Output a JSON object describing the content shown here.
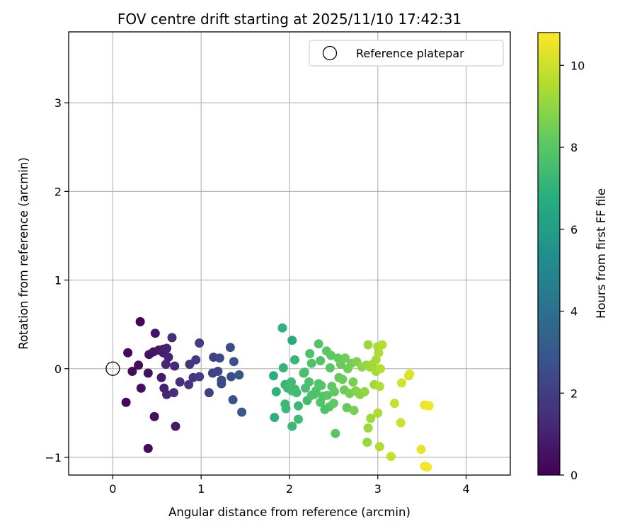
{
  "chart_data": {
    "type": "scatter",
    "title": "FOV centre drift starting at 2025/11/10 17:42:31",
    "xlabel": "Angular distance from reference (arcmin)",
    "ylabel": "Rotation from reference (arcmin)",
    "xlim": [
      -0.5,
      4.5
    ],
    "ylim": [
      -1.2,
      3.8
    ],
    "x_ticks": [
      0,
      1,
      2,
      3,
      4
    ],
    "x_tick_labels": [
      "0",
      "1",
      "2",
      "3",
      "4"
    ],
    "y_ticks": [
      -1,
      0,
      1,
      2,
      3
    ],
    "y_tick_labels": [
      "−1",
      "0",
      "1",
      "2",
      "3"
    ],
    "grid": true,
    "legend": {
      "position": "top-right",
      "entries": [
        {
          "label": "Reference platepar",
          "marker": "open-circle"
        }
      ]
    },
    "reference_point": {
      "x": 0,
      "y": 0,
      "label": "Reference platepar"
    },
    "colorbar": {
      "label": "Hours from first FF file",
      "colormap": "viridis",
      "range": [
        0,
        10.8
      ],
      "ticks": [
        0,
        2,
        4,
        6,
        8,
        10
      ],
      "tick_labels": [
        "0",
        "2",
        "4",
        "6",
        "8",
        "10"
      ]
    },
    "series": [
      {
        "name": "FOV centre drift",
        "points": [
          [
            0.31,
            0.53,
            0.1
          ],
          [
            0.17,
            0.18,
            0.2
          ],
          [
            0.15,
            -0.38,
            0.15
          ],
          [
            0.22,
            -0.03,
            0.3
          ],
          [
            0.29,
            0.04,
            0.35
          ],
          [
            0.32,
            -0.22,
            0.4
          ],
          [
            0.41,
            0.16,
            0.5
          ],
          [
            0.4,
            -0.05,
            0.45
          ],
          [
            0.48,
            0.4,
            0.55
          ],
          [
            0.46,
            0.19,
            0.6
          ],
          [
            0.52,
            0.21,
            0.7
          ],
          [
            0.47,
            -0.54,
            0.5
          ],
          [
            0.4,
            -0.9,
            0.35
          ],
          [
            0.55,
            -0.1,
            0.8
          ],
          [
            0.57,
            0.22,
            0.9
          ],
          [
            0.57,
            0.18,
            0.95
          ],
          [
            0.61,
            0.23,
            1.0
          ],
          [
            0.63,
            0.13,
            1.05
          ],
          [
            0.58,
            -0.22,
            1.1
          ],
          [
            0.61,
            -0.29,
            1.15
          ],
          [
            0.6,
            0.05,
            1.2
          ],
          [
            0.7,
            0.03,
            1.3
          ],
          [
            0.71,
            -0.65,
            0.8
          ],
          [
            0.67,
            0.35,
            1.35
          ],
          [
            0.69,
            -0.27,
            1.4
          ],
          [
            0.76,
            -0.15,
            1.5
          ],
          [
            0.86,
            -0.18,
            1.6
          ],
          [
            0.87,
            0.05,
            1.7
          ],
          [
            0.91,
            -0.1,
            1.8
          ],
          [
            0.94,
            0.1,
            1.9
          ],
          [
            0.98,
            -0.09,
            2.0
          ],
          [
            0.98,
            0.29,
            2.05
          ],
          [
            1.09,
            -0.27,
            2.1
          ],
          [
            1.13,
            -0.05,
            2.15
          ],
          [
            1.14,
            0.13,
            2.2
          ],
          [
            1.19,
            -0.03,
            2.3
          ],
          [
            1.21,
            0.12,
            2.35
          ],
          [
            1.23,
            -0.13,
            2.4
          ],
          [
            1.23,
            -0.17,
            2.45
          ],
          [
            1.33,
            0.24,
            2.5
          ],
          [
            1.34,
            -0.09,
            2.6
          ],
          [
            1.37,
            0.08,
            2.7
          ],
          [
            1.36,
            -0.35,
            2.8
          ],
          [
            1.43,
            -0.07,
            2.9
          ],
          [
            1.46,
            -0.49,
            3.0
          ],
          [
            1.92,
            0.46,
            7.0
          ],
          [
            1.82,
            -0.08,
            6.8
          ],
          [
            1.83,
            -0.55,
            6.9
          ],
          [
            1.85,
            -0.26,
            7.0
          ],
          [
            1.93,
            0.01,
            7.1
          ],
          [
            1.95,
            -0.18,
            7.2
          ],
          [
            1.95,
            -0.4,
            7.3
          ],
          [
            1.96,
            -0.45,
            7.25
          ],
          [
            1.98,
            -0.22,
            7.35
          ],
          [
            2.03,
            0.32,
            6.6
          ],
          [
            2.02,
            -0.15,
            7.4
          ],
          [
            2.03,
            -0.25,
            7.5
          ],
          [
            2.03,
            -0.65,
            7.3
          ],
          [
            2.06,
            0.1,
            7.2
          ],
          [
            2.06,
            -0.23,
            7.45
          ],
          [
            2.08,
            -0.27,
            7.5
          ],
          [
            2.1,
            -0.42,
            7.3
          ],
          [
            2.1,
            -0.57,
            7.4
          ],
          [
            2.16,
            -0.05,
            7.55
          ],
          [
            2.17,
            -0.04,
            7.6
          ],
          [
            2.18,
            -0.22,
            7.6
          ],
          [
            2.2,
            -0.36,
            7.5
          ],
          [
            2.23,
            0.17,
            7.7
          ],
          [
            2.22,
            -0.15,
            7.65
          ],
          [
            2.25,
            -0.3,
            7.7
          ],
          [
            2.25,
            0.06,
            7.75
          ],
          [
            2.28,
            -0.29,
            7.75
          ],
          [
            2.3,
            -0.25,
            7.8
          ],
          [
            2.33,
            0.28,
            7.8
          ],
          [
            2.33,
            -0.17,
            7.85
          ],
          [
            2.35,
            0.09,
            7.85
          ],
          [
            2.35,
            -0.38,
            7.9
          ],
          [
            2.36,
            -0.19,
            7.9
          ],
          [
            2.38,
            -0.31,
            7.8
          ],
          [
            2.4,
            -0.46,
            7.7
          ],
          [
            2.42,
            0.2,
            8.0
          ],
          [
            2.43,
            -0.3,
            8.0
          ],
          [
            2.45,
            -0.43,
            7.9
          ],
          [
            2.46,
            0.01,
            8.0
          ],
          [
            2.47,
            0.15,
            8.1
          ],
          [
            2.48,
            -0.2,
            8.1
          ],
          [
            2.5,
            -0.39,
            8.15
          ],
          [
            2.51,
            -0.26,
            8.2
          ],
          [
            2.52,
            -0.73,
            8.0
          ],
          [
            2.55,
            0.12,
            8.2
          ],
          [
            2.56,
            -0.1,
            8.25
          ],
          [
            2.58,
            0.05,
            8.3
          ],
          [
            2.6,
            -0.12,
            8.3
          ],
          [
            2.62,
            -0.24,
            8.35
          ],
          [
            2.63,
            0.12,
            8.4
          ],
          [
            2.65,
            -0.44,
            8.2
          ],
          [
            2.66,
            0.0,
            8.45
          ],
          [
            2.68,
            -0.28,
            8.5
          ],
          [
            2.7,
            0.06,
            8.5
          ],
          [
            2.72,
            -0.15,
            8.6
          ],
          [
            2.73,
            -0.47,
            8.6
          ],
          [
            2.75,
            -0.25,
            8.7
          ],
          [
            2.76,
            0.08,
            8.7
          ],
          [
            2.78,
            -0.27,
            8.8
          ],
          [
            2.8,
            -0.29,
            8.85
          ],
          [
            2.82,
            0.02,
            8.9
          ],
          [
            2.85,
            -0.26,
            9.0
          ],
          [
            2.87,
            0.04,
            9.1
          ],
          [
            2.88,
            -0.83,
            9.1
          ],
          [
            2.89,
            0.27,
            9.15
          ],
          [
            2.89,
            -0.67,
            9.2
          ],
          [
            2.91,
            0.02,
            9.2
          ],
          [
            2.92,
            -0.56,
            9.25
          ],
          [
            2.94,
            0.05,
            9.3
          ],
          [
            2.96,
            -0.18,
            9.3
          ],
          [
            2.98,
            -0.03,
            9.35
          ],
          [
            2.98,
            0.1,
            9.4
          ],
          [
            3.0,
            0.25,
            9.4
          ],
          [
            3.0,
            -0.5,
            9.5
          ],
          [
            3.01,
            0.18,
            9.5
          ],
          [
            3.02,
            -0.88,
            9.5
          ],
          [
            3.02,
            -0.2,
            9.55
          ],
          [
            3.03,
            0.0,
            9.6
          ],
          [
            3.05,
            0.27,
            9.6
          ],
          [
            3.15,
            -0.99,
            9.9
          ],
          [
            3.19,
            -0.39,
            9.9
          ],
          [
            3.26,
            -0.61,
            10.0
          ],
          [
            3.27,
            -0.16,
            10.1
          ],
          [
            3.35,
            -0.08,
            10.2
          ],
          [
            3.36,
            -0.06,
            10.25
          ],
          [
            3.49,
            -0.91,
            10.4
          ],
          [
            3.53,
            -0.41,
            10.5
          ],
          [
            3.58,
            -0.42,
            10.6
          ],
          [
            3.53,
            -1.1,
            10.6
          ],
          [
            3.56,
            -1.11,
            10.7
          ]
        ]
      }
    ]
  }
}
